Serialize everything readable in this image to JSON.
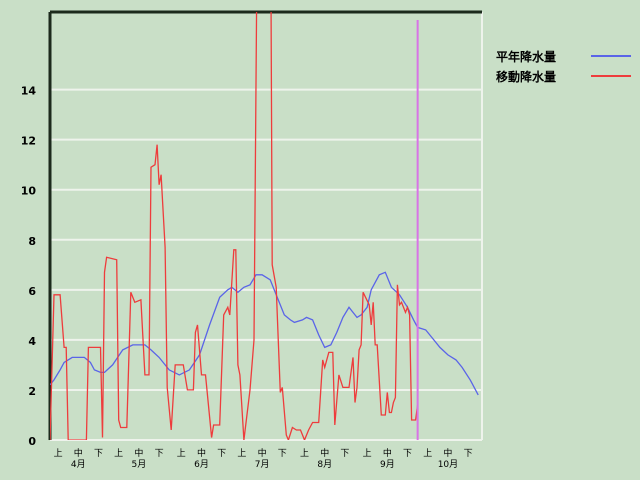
{
  "chart_data": {
    "type": "line",
    "title": "",
    "xlabel": "",
    "ylabel": "",
    "ylim": [
      0,
      17.1
    ],
    "yticks": [
      "0",
      "2",
      "4",
      "6",
      "8",
      "10",
      "12",
      "14"
    ],
    "grid": true,
    "legend_position": "top-right",
    "months": [
      {
        "label": "4月",
        "start": "4/1"
      },
      {
        "label": "5月",
        "start": "5/1"
      },
      {
        "label": "6月",
        "start": "6/1"
      },
      {
        "label": "7月",
        "start": "7/1"
      },
      {
        "label": "8月",
        "start": "8/1"
      },
      {
        "label": "9月",
        "start": "9/1"
      },
      {
        "label": "10月",
        "start": "10/1"
      }
    ],
    "dekad_labels": [
      "上",
      "中",
      "下"
    ],
    "marker_date": "9/30",
    "marker_color": "#d874e6",
    "series": [
      {
        "name": "平年降水量",
        "color": "#5a64e8",
        "points": [
          [
            "4/1",
            2.2
          ],
          [
            "4/3",
            2.4
          ],
          [
            "4/6",
            2.8
          ],
          [
            "4/8",
            3.1
          ],
          [
            "4/12",
            3.3
          ],
          [
            "4/18",
            3.3
          ],
          [
            "4/21",
            3.1
          ],
          [
            "4/23",
            2.8
          ],
          [
            "4/26",
            2.7
          ],
          [
            "4/28",
            2.7
          ],
          [
            "5/2",
            3.0
          ],
          [
            "5/7",
            3.6
          ],
          [
            "5/12",
            3.8
          ],
          [
            "5/18",
            3.8
          ],
          [
            "5/21",
            3.6
          ],
          [
            "5/25",
            3.3
          ],
          [
            "5/30",
            2.8
          ],
          [
            "6/4",
            2.6
          ],
          [
            "6/9",
            2.8
          ],
          [
            "6/14",
            3.4
          ],
          [
            "6/19",
            4.6
          ],
          [
            "6/24",
            5.7
          ],
          [
            "6/28",
            6.0
          ],
          [
            "6/30",
            6.1
          ],
          [
            "7/3",
            5.9
          ],
          [
            "7/6",
            6.1
          ],
          [
            "7/9",
            6.2
          ],
          [
            "7/12",
            6.6
          ],
          [
            "7/15",
            6.6
          ],
          [
            "7/19",
            6.4
          ],
          [
            "7/22",
            5.8
          ],
          [
            "7/26",
            5.0
          ],
          [
            "7/29",
            4.8
          ],
          [
            "7/31",
            4.7
          ],
          [
            "8/4",
            4.8
          ],
          [
            "8/6",
            4.9
          ],
          [
            "8/9",
            4.8
          ],
          [
            "8/12",
            4.2
          ],
          [
            "8/15",
            3.7
          ],
          [
            "8/18",
            3.8
          ],
          [
            "8/21",
            4.3
          ],
          [
            "8/24",
            4.9
          ],
          [
            "8/27",
            5.3
          ],
          [
            "8/29",
            5.1
          ],
          [
            "8/31",
            4.9
          ],
          [
            "9/2",
            5.0
          ],
          [
            "9/5",
            5.3
          ],
          [
            "9/7",
            6.0
          ],
          [
            "9/11",
            6.6
          ],
          [
            "9/14",
            6.7
          ],
          [
            "9/17",
            6.1
          ],
          [
            "9/21",
            5.8
          ],
          [
            "9/25",
            5.3
          ],
          [
            "9/28",
            4.8
          ],
          [
            "9/30",
            4.5
          ],
          [
            "10/4",
            4.4
          ],
          [
            "10/7",
            4.1
          ],
          [
            "10/11",
            3.7
          ],
          [
            "10/15",
            3.4
          ],
          [
            "10/19",
            3.2
          ],
          [
            "10/22",
            2.9
          ],
          [
            "10/26",
            2.4
          ],
          [
            "10/30",
            1.8
          ]
        ]
      },
      {
        "name": "移動降水量",
        "color": "#ee3c3c",
        "points": [
          [
            "4/1",
            0
          ],
          [
            "4/3",
            5.8
          ],
          [
            "4/6",
            5.8
          ],
          [
            "4/8",
            3.7
          ],
          [
            "4/9",
            3.7
          ],
          [
            "4/10",
            0
          ],
          [
            "4/19",
            0
          ],
          [
            "4/20",
            3.7
          ],
          [
            "4/26",
            3.7
          ],
          [
            "4/27",
            0.1
          ],
          [
            "4/28",
            6.7
          ],
          [
            "4/29",
            7.3
          ],
          [
            "5/4",
            7.2
          ],
          [
            "5/5",
            0.8
          ],
          [
            "5/6",
            0.5
          ],
          [
            "5/9",
            0.5
          ],
          [
            "5/11",
            5.9
          ],
          [
            "5/13",
            5.5
          ],
          [
            "5/16",
            5.6
          ],
          [
            "5/18",
            2.6
          ],
          [
            "5/20",
            2.6
          ],
          [
            "5/21",
            10.9
          ],
          [
            "5/23",
            11.0
          ],
          [
            "5/24",
            11.8
          ],
          [
            "5/25",
            10.2
          ],
          [
            "5/26",
            10.6
          ],
          [
            "5/28",
            7.7
          ],
          [
            "5/29",
            2.1
          ],
          [
            "5/31",
            0.4
          ],
          [
            "6/2",
            3.0
          ],
          [
            "6/6",
            3.0
          ],
          [
            "6/8",
            2.0
          ],
          [
            "6/11",
            2.0
          ],
          [
            "6/12",
            4.3
          ],
          [
            "6/13",
            4.6
          ],
          [
            "6/15",
            2.6
          ],
          [
            "6/17",
            2.6
          ],
          [
            "6/20",
            0.1
          ],
          [
            "6/21",
            0.6
          ],
          [
            "6/24",
            0.6
          ],
          [
            "6/26",
            5.0
          ],
          [
            "6/28",
            5.3
          ],
          [
            "6/29",
            5.0
          ],
          [
            "7/1",
            7.6
          ],
          [
            "7/2",
            7.6
          ],
          [
            "7/3",
            3.0
          ],
          [
            "7/4",
            2.6
          ],
          [
            "7/6",
            0
          ],
          [
            "7/9",
            2.0
          ],
          [
            "7/11",
            4.0
          ],
          [
            "7/13",
            25
          ],
          [
            "7/19",
            25
          ],
          [
            "7/20",
            7.0
          ],
          [
            "7/22",
            6.1
          ],
          [
            "7/24",
            1.9
          ],
          [
            "7/25",
            2.1
          ],
          [
            "7/27",
            0.2
          ],
          [
            "7/28",
            0
          ],
          [
            "7/30",
            0.5
          ],
          [
            "8/1",
            0.4
          ],
          [
            "8/3",
            0.4
          ],
          [
            "8/5",
            0
          ],
          [
            "8/7",
            0.4
          ],
          [
            "8/9",
            0.7
          ],
          [
            "8/12",
            0.7
          ],
          [
            "8/14",
            3.2
          ],
          [
            "8/15",
            2.9
          ],
          [
            "8/17",
            3.5
          ],
          [
            "8/19",
            3.5
          ],
          [
            "8/20",
            0.6
          ],
          [
            "8/22",
            2.6
          ],
          [
            "8/24",
            2.1
          ],
          [
            "8/27",
            2.1
          ],
          [
            "8/29",
            3.3
          ],
          [
            "8/30",
            1.5
          ],
          [
            "8/31",
            2.1
          ],
          [
            "9/1",
            3.6
          ],
          [
            "9/2",
            3.8
          ],
          [
            "9/3",
            5.9
          ],
          [
            "9/6",
            5.4
          ],
          [
            "9/7",
            4.6
          ],
          [
            "9/8",
            5.5
          ],
          [
            "9/9",
            3.8
          ],
          [
            "9/10",
            3.8
          ],
          [
            "9/12",
            1.0
          ],
          [
            "9/14",
            1.0
          ],
          [
            "9/15",
            1.9
          ],
          [
            "9/16",
            1.1
          ],
          [
            "9/17",
            1.1
          ],
          [
            "9/18",
            1.5
          ],
          [
            "9/19",
            1.7
          ],
          [
            "9/20",
            6.2
          ],
          [
            "9/21",
            5.4
          ],
          [
            "9/22",
            5.5
          ],
          [
            "9/24",
            5.1
          ],
          [
            "9/25",
            5.3
          ],
          [
            "9/26",
            5.0
          ],
          [
            "9/27",
            0.8
          ],
          [
            "9/29",
            0.8
          ],
          [
            "9/30",
            1.4
          ]
        ]
      }
    ]
  }
}
